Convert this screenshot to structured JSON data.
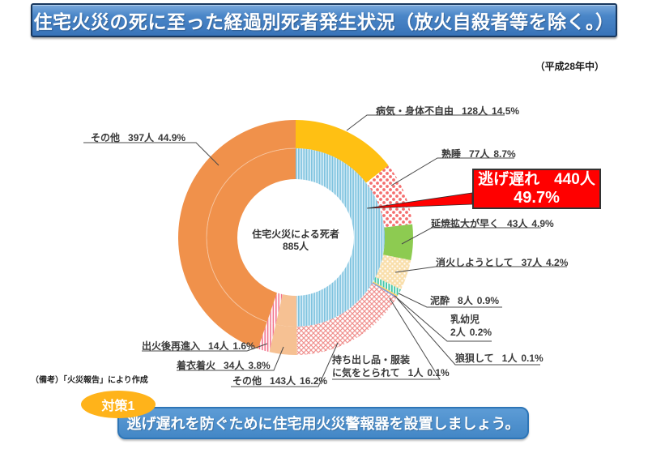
{
  "header": {
    "title": "住宅火災の死に至った経過別死者発生状況（放火自殺者等を除く。）",
    "period": "（平成28年中）",
    "bar_color": "#3873B8"
  },
  "chart_data": {
    "type": "pie",
    "subtype": "donut-sunburst",
    "center_label": {
      "line1": "住宅火災による死者",
      "line2": "885人"
    },
    "total_deaths": 885,
    "unit": "人",
    "parent_segments": [
      {
        "id": "delayed-escape",
        "name": "逃げ遅れ",
        "count": "440人",
        "pct": "49.7%",
        "value": 49.7,
        "fill": "pattern:vstripe-blue"
      },
      {
        "id": "clothing-ignition",
        "name": "着衣着火",
        "count": "34人",
        "pct": "3.8%",
        "value": 3.8,
        "fill": "#F6C193"
      },
      {
        "id": "reentry-after-fire",
        "name": "出火後再進入",
        "count": "14人",
        "pct": "1.6%",
        "value": 1.6,
        "fill": "pattern:vstripe-pink"
      },
      {
        "id": "other-main",
        "name": "その他",
        "count": "397人",
        "pct": "44.9%",
        "value": 44.9,
        "fill": "#F0914B"
      }
    ],
    "breakdown_segments": [
      {
        "id": "sickness-disability",
        "name": "病気・身体不自由",
        "count": "128人",
        "pct": "14.5%",
        "value": 14.5,
        "fill": "#FFC013"
      },
      {
        "id": "deep-sleep",
        "name": "熟睡",
        "count": "77人",
        "pct": "8.7%",
        "value": 8.7,
        "fill": "pattern:dots-red"
      },
      {
        "id": "rapid-fire-spread",
        "name": "延焼拡大が早く",
        "count": "43人",
        "pct": "4.9%",
        "value": 4.9,
        "fill": "#8DCB51"
      },
      {
        "id": "tried-to-extinguish",
        "name": "消火しようとして",
        "count": "37人",
        "pct": "4.2%",
        "value": 4.2,
        "fill": "pattern:dots-cream"
      },
      {
        "id": "intoxicated",
        "name": "泥酔",
        "count": "8人",
        "pct": "0.9%",
        "value": 0.9,
        "fill": "pattern:vstripe-teal"
      },
      {
        "id": "infant",
        "name": "乳幼児",
        "count": "2人",
        "pct": "0.2%",
        "value": 0.2,
        "fill": "#FFD966"
      },
      {
        "id": "panicked",
        "name": "狼狽して",
        "count": "1人",
        "pct": "0.1%",
        "value": 0.1,
        "fill": "#8E7CC3"
      },
      {
        "id": "distracted-belongings",
        "name": "持ち出し品・服装",
        "name2": "に気をとられて",
        "count": "1人",
        "pct": "0.1%",
        "value": 0.1,
        "fill": "#6FA8DC"
      },
      {
        "id": "other-delayed",
        "name": "その他",
        "count": "143人",
        "pct": "16.2%",
        "value": 16.2,
        "fill": "pattern:crosshatch-red"
      }
    ],
    "legend_position": "around",
    "callout_color": "#FF0000"
  },
  "footer": {
    "source_note": "（備考）「火災報告」により作成",
    "badge": "対策1",
    "badge_color": "#FFB31A",
    "message": "逃げ遅れを防ぐために住宅用火災警報器を設置しましょう。",
    "banner_color": "#4387C6"
  }
}
